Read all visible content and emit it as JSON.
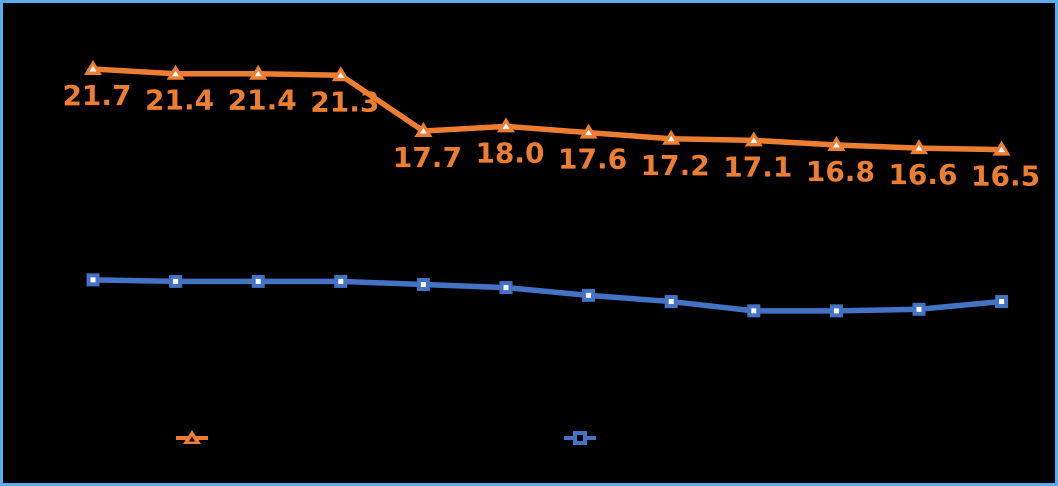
{
  "chart_data": {
    "type": "line",
    "title": "",
    "grid": false,
    "axes_visible": false,
    "background_color": "#000000",
    "frame_color": "#58ADEE",
    "x_count": 12,
    "categories": [
      "",
      "",
      "",
      "",
      "",
      "",
      "",
      "",
      "",
      "",
      "",
      ""
    ],
    "series": [
      {
        "name": "upper-orange-series",
        "color": "#ED7D31",
        "marker": "triangle",
        "marker_inner_color": "#FFFFFF",
        "labels_visible": true,
        "values": [
          21.7,
          21.4,
          21.4,
          21.3,
          17.7,
          18.0,
          17.6,
          17.2,
          17.1,
          16.8,
          16.6,
          16.5
        ],
        "data_labels": [
          "21.7",
          "21.4",
          "21.4",
          "21.3",
          "17.7",
          "18.0",
          "17.6",
          "17.2",
          "17.1",
          "16.8",
          "16.6",
          "16.5"
        ]
      },
      {
        "name": "lower-blue-series",
        "color": "#4472C4",
        "marker": "square",
        "marker_inner_color": "#FFFFFF",
        "labels_visible": false,
        "values_estimated": true,
        "values": [
          8.1,
          8.0,
          8.0,
          8.0,
          7.8,
          7.6,
          7.1,
          6.7,
          6.1,
          6.1,
          6.2,
          6.7
        ]
      }
    ],
    "legend": {
      "position": "bottom-center",
      "labels_visible": false,
      "entries": [
        {
          "series": "upper-orange-series",
          "marker": "triangle",
          "color": "#ED7D31",
          "label": ""
        },
        {
          "series": "lower-blue-series",
          "marker": "square",
          "color": "#4472C4",
          "label": ""
        }
      ]
    }
  }
}
